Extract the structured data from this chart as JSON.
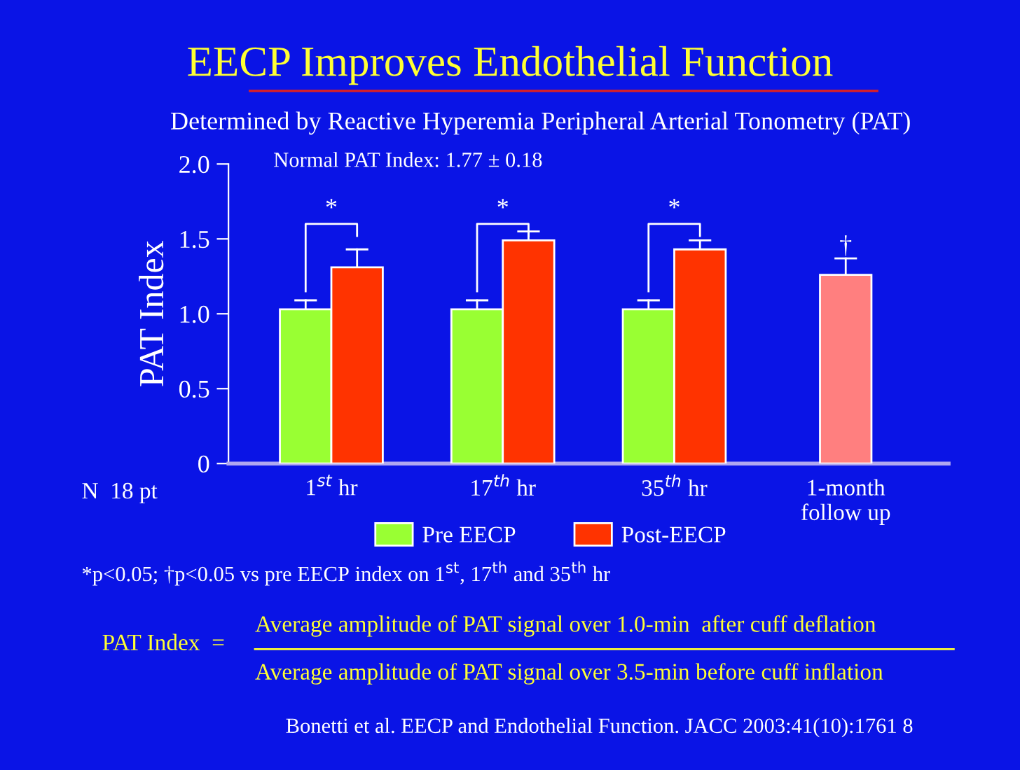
{
  "chart_data": {
    "type": "bar",
    "title": "EECP Improves Endothelial Function",
    "subtitle": "Determined by Reactive Hyperemia Peripheral Arterial Tonometry (PAT)",
    "ylabel": "PAT Index",
    "categories": [
      "1$^{st}$ hr",
      "17$^{th}$ hr",
      "35$^{th}$ hr",
      "1-month\nfollow up"
    ],
    "series": [
      {
        "name": "Pre EECP",
        "color": "#99ff33",
        "values": [
          1.03,
          1.03,
          1.03,
          null
        ],
        "errors": [
          [
            1.03,
            1.09
          ],
          [
            1.03,
            1.09
          ],
          [
            1.03,
            1.09
          ],
          null
        ]
      },
      {
        "name": "Post-EECP",
        "color": "#ff3300",
        "colors": [
          "#ff3300",
          "#ff3300",
          "#ff3300",
          "#ff7f7f"
        ],
        "values": [
          1.31,
          1.49,
          1.43,
          1.26
        ],
        "errors": [
          [
            1.31,
            1.43
          ],
          [
            1.49,
            1.55
          ],
          [
            1.43,
            1.49
          ],
          [
            1.26,
            1.37
          ]
        ]
      }
    ],
    "ylim": [
      0,
      2.0
    ],
    "yticks": [
      {
        "value": 0,
        "label": "0"
      },
      {
        "value": 0.5,
        "label": "0.5"
      },
      {
        "value": 1.0,
        "label": "1.0"
      },
      {
        "value": 1.5,
        "label": "1.5"
      },
      {
        "value": 2.0,
        "label": "2.0"
      }
    ],
    "grid": false,
    "legend": "bottom",
    "annotations": [
      "Normal PAT Index: 1.77 ± 0.18",
      "*",
      "*",
      "*",
      {
        "text": "†",
        "x": "1-month\nfollow up",
        "y": 1.37
      },
      "N  18 pt",
      "*p<0.05; †p<0.05 vs pre EECP index on 1$^{st}$, 17$^{th}$ and 35$^{th}$ hr",
      "PAT Index  =",
      "Average amplitude of PAT signal over 1.0-min  after cuff deflation",
      "Average amplitude of PAT signal over 3.5-min before cuff inflation",
      "Bonetti et al. EECP and Endothelial Function. JACC 2003:41(10):1761 8"
    ]
  }
}
